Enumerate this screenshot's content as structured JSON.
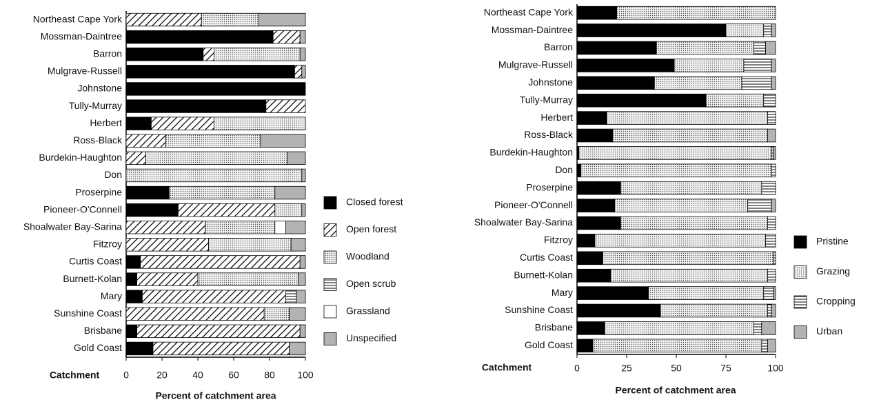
{
  "chart_data": [
    {
      "type": "bar",
      "orientation": "horizontal",
      "stacked": true,
      "ylabel": "Catchment",
      "xlabel": "Percent of catchment area",
      "xlim": [
        0,
        100
      ],
      "xticks": [
        0,
        20,
        40,
        60,
        80,
        100
      ],
      "categories": [
        "Northeast Cape York",
        "Mossman-Daintree",
        "Barron",
        "Mulgrave-Russell",
        "Johnstone",
        "Tully-Murray",
        "Herbert",
        "Ross-Black",
        "Burdekin-Haughton",
        "Don",
        "Proserpine",
        "Pioneer-O'Connell",
        "Shoalwater Bay-Sarina",
        "Fitzroy",
        "Curtis Coast",
        "Burnett-Kolan",
        "Mary",
        "Sunshine Coast",
        "Brisbane",
        "Gold Coast"
      ],
      "series": [
        {
          "name": "Closed forest",
          "color": "#000000",
          "pattern": "solid",
          "values": [
            0,
            82,
            43,
            94,
            100,
            78,
            14,
            0,
            0,
            0,
            24,
            29,
            0,
            0,
            8,
            6,
            9,
            0,
            6,
            15
          ]
        },
        {
          "name": "Open forest",
          "color": "#ffffff",
          "pattern": "diagonal",
          "values": [
            42,
            15,
            6,
            4,
            0,
            22,
            35,
            22,
            11,
            0,
            0,
            54,
            44,
            46,
            89,
            34,
            80,
            77,
            91,
            76
          ]
        },
        {
          "name": "Woodland",
          "color": "#ffffff",
          "pattern": "dotted",
          "values": [
            32,
            0,
            48,
            0,
            0,
            0,
            51,
            53,
            79,
            98,
            59,
            15,
            39,
            46,
            0,
            56,
            0,
            14,
            0,
            0
          ]
        },
        {
          "name": "Open scrub",
          "color": "#ffffff",
          "pattern": "horizontal",
          "values": [
            0,
            0,
            0,
            0,
            0,
            0,
            0,
            0,
            0,
            0,
            0,
            0,
            0,
            0,
            0,
            0,
            6,
            0,
            0,
            0
          ]
        },
        {
          "name": "Grassland",
          "color": "#ffffff",
          "pattern": "solid",
          "values": [
            0,
            0,
            0,
            0,
            0,
            0,
            0,
            0,
            0,
            0,
            0,
            0,
            6,
            0,
            0,
            0,
            0,
            0,
            0,
            0
          ]
        },
        {
          "name": "Unspecified",
          "color": "#b3b3b3",
          "pattern": "solid",
          "values": [
            26,
            3,
            3,
            2,
            0,
            0,
            0,
            25,
            10,
            2,
            17,
            2,
            11,
            8,
            3,
            4,
            5,
            9,
            3,
            9
          ]
        }
      ]
    },
    {
      "type": "bar",
      "orientation": "horizontal",
      "stacked": true,
      "ylabel": "Catchment",
      "xlabel": "Percent of catchment area",
      "xlim": [
        0,
        100
      ],
      "xticks": [
        0,
        25,
        50,
        75,
        100
      ],
      "categories": [
        "Northeast Cape York",
        "Mossman-Daintree",
        "Barron",
        "Mulgrave-Russell",
        "Johnstone",
        "Tully-Murray",
        "Herbert",
        "Ross-Black",
        "Burdekin-Haughton",
        "Don",
        "Proserpine",
        "Pioneer-O'Connell",
        "Shoalwater Bay-Sarina",
        "Fitzroy",
        "Curtis Coast",
        "Burnett-Kolan",
        "Mary",
        "Sunshine Coast",
        "Brisbane",
        "Gold Coast"
      ],
      "series": [
        {
          "name": "Pristine",
          "color": "#000000",
          "pattern": "solid",
          "values": [
            20,
            75,
            40,
            49,
            39,
            65,
            15,
            18,
            1,
            2,
            22,
            19,
            22,
            9,
            13,
            17,
            36,
            42,
            14,
            8
          ]
        },
        {
          "name": "Grazing",
          "color": "#ffffff",
          "pattern": "dotted",
          "values": [
            80,
            19,
            49,
            35,
            44,
            29,
            81,
            78,
            97,
            96,
            71,
            67,
            74,
            86,
            86,
            79,
            58,
            54,
            75,
            85
          ]
        },
        {
          "name": "Cropping",
          "color": "#ffffff",
          "pattern": "horizontal",
          "values": [
            0,
            4,
            6,
            14,
            15,
            6,
            4,
            0,
            1,
            2,
            7,
            12,
            4,
            5,
            1,
            4,
            5,
            2,
            4,
            3
          ]
        },
        {
          "name": "Urban",
          "color": "#b3b3b3",
          "pattern": "solid",
          "values": [
            0,
            2,
            5,
            2,
            2,
            0,
            0,
            4,
            1,
            0,
            0,
            2,
            0,
            0,
            0,
            0,
            1,
            2,
            7,
            4
          ]
        }
      ]
    }
  ]
}
